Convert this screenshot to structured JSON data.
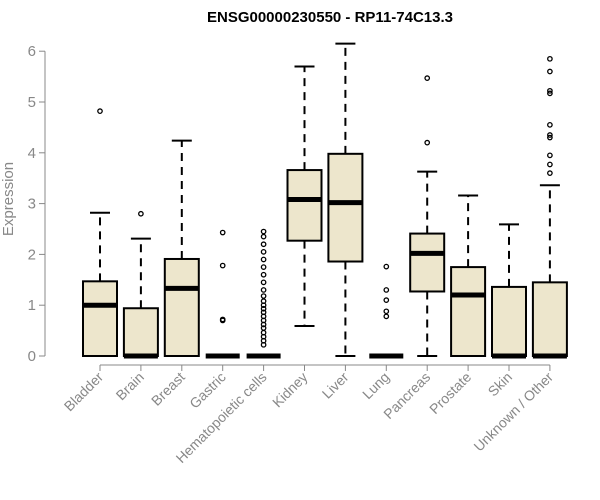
{
  "chart_data": {
    "type": "boxplot",
    "title": "ENSG00000230550 - RP11-74C13.3",
    "xlabel": "",
    "ylabel": "Expression",
    "ylim": [
      0,
      6.2
    ],
    "yticks": [
      0,
      1,
      2,
      3,
      4,
      5,
      6
    ],
    "colors": {
      "box_fill": "#ede6cc",
      "stroke": "#000000",
      "axis": "#888888"
    },
    "categories": [
      "Bladder",
      "Brain",
      "Breast",
      "Gastric",
      "Hematopoietic cells",
      "Kidney",
      "Liver",
      "Lung",
      "Pancreas",
      "Prostate",
      "Skin",
      "Unknown / Other"
    ],
    "boxes": [
      {
        "category": "Bladder",
        "min": 0,
        "q1": 0,
        "median": 1.0,
        "q3": 1.47,
        "max": 2.82,
        "outliers": [
          4.82
        ]
      },
      {
        "category": "Brain",
        "min": 0,
        "q1": 0,
        "median": 0,
        "q3": 0.94,
        "max": 2.31,
        "outliers": [
          2.8
        ]
      },
      {
        "category": "Breast",
        "min": 0,
        "q1": 0,
        "median": 1.33,
        "q3": 1.91,
        "max": 4.24,
        "outliers": []
      },
      {
        "category": "Gastric",
        "min": 0,
        "q1": 0,
        "median": 0,
        "q3": 0,
        "max": 0,
        "outliers": [
          0.7,
          0.72,
          1.78,
          2.43
        ]
      },
      {
        "category": "Hematopoietic cells",
        "min": 0,
        "q1": 0,
        "median": 0,
        "q3": 0,
        "max": 0,
        "outliers": [
          0.22,
          0.3,
          0.38,
          0.46,
          0.55,
          0.62,
          0.7,
          0.78,
          0.86,
          0.93,
          1.0,
          1.08,
          1.18,
          1.3,
          1.45,
          1.6,
          1.75,
          1.9,
          2.05,
          2.2,
          2.35,
          2.45
        ]
      },
      {
        "category": "Kidney",
        "min": 0.59,
        "q1": 2.27,
        "median": 3.08,
        "q3": 3.66,
        "max": 5.7,
        "outliers": []
      },
      {
        "category": "Liver",
        "min": 0,
        "q1": 1.86,
        "median": 3.02,
        "q3": 3.98,
        "max": 6.15,
        "outliers": []
      },
      {
        "category": "Lung",
        "min": 0,
        "q1": 0,
        "median": 0,
        "q3": 0,
        "max": 0,
        "outliers": [
          0.78,
          0.88,
          1.1,
          1.3,
          1.76
        ]
      },
      {
        "category": "Pancreas",
        "min": 0,
        "q1": 1.27,
        "median": 2.02,
        "q3": 2.41,
        "max": 3.63,
        "outliers": [
          4.2,
          5.47
        ]
      },
      {
        "category": "Prostate",
        "min": 0,
        "q1": 0,
        "median": 1.2,
        "q3": 1.75,
        "max": 3.16,
        "outliers": []
      },
      {
        "category": "Skin",
        "min": 0,
        "q1": 0,
        "median": 0,
        "q3": 1.36,
        "max": 2.59,
        "outliers": []
      },
      {
        "category": "Unknown / Other",
        "min": 0,
        "q1": 0,
        "median": 0,
        "q3": 1.45,
        "max": 3.36,
        "outliers": [
          3.6,
          3.77,
          3.95,
          4.3,
          4.35,
          4.55,
          5.17,
          5.22,
          5.6,
          5.85
        ]
      }
    ]
  }
}
